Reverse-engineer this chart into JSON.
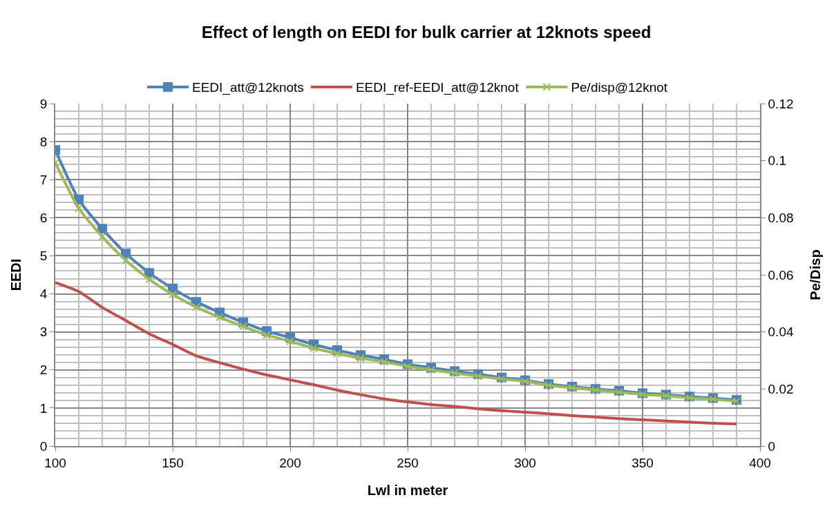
{
  "chart_data": {
    "type": "line",
    "title": "Effect of length on EEDI for bulk carrier at 12knots speed",
    "xlabel": "Lwl in meter",
    "ylabel": "EEDI",
    "y2label": "Pe/Disp",
    "x": [
      100,
      110,
      120,
      130,
      140,
      150,
      160,
      170,
      180,
      190,
      200,
      210,
      220,
      230,
      240,
      250,
      260,
      270,
      280,
      290,
      300,
      310,
      320,
      330,
      340,
      350,
      360,
      370,
      380,
      390
    ],
    "series": [
      {
        "name": "EEDI_att@12knots",
        "color": "#4f81bd",
        "marker": "square",
        "values": [
          7.78,
          6.48,
          5.71,
          5.06,
          4.55,
          4.14,
          3.79,
          3.51,
          3.25,
          3.02,
          2.85,
          2.67,
          2.52,
          2.39,
          2.28,
          2.15,
          2.06,
          1.97,
          1.89,
          1.8,
          1.73,
          1.63,
          1.56,
          1.5,
          1.45,
          1.39,
          1.35,
          1.3,
          1.26,
          1.21
        ]
      },
      {
        "name": "EEDI_ref-EEDI_att@12knot",
        "color": "#c0504d",
        "marker": "none",
        "values": [
          4.3,
          4.06,
          3.64,
          3.3,
          2.95,
          2.67,
          2.37,
          2.19,
          2.02,
          1.87,
          1.74,
          1.61,
          1.47,
          1.35,
          1.24,
          1.16,
          1.09,
          1.04,
          0.98,
          0.93,
          0.89,
          0.85,
          0.8,
          0.76,
          0.72,
          0.69,
          0.66,
          0.63,
          0.6,
          0.58
        ]
      },
      {
        "name": "Pe/disp@12knot",
        "color": "#9bbb59",
        "marker": "cross",
        "axis": "y2",
        "values": [
          0.0993,
          0.0833,
          0.0733,
          0.0651,
          0.0584,
          0.0531,
          0.0487,
          0.0451,
          0.0419,
          0.0389,
          0.0367,
          0.0343,
          0.0324,
          0.0308,
          0.0295,
          0.0279,
          0.0267,
          0.0256,
          0.0245,
          0.0235,
          0.0227,
          0.0213,
          0.0204,
          0.0196,
          0.0189,
          0.0181,
          0.0176,
          0.0169,
          0.0164,
          0.0157
        ]
      }
    ],
    "xlim": [
      100,
      400
    ],
    "xticks": [
      100,
      150,
      200,
      250,
      300,
      350,
      400
    ],
    "ylim": [
      0,
      9
    ],
    "yticks": [
      0,
      1,
      2,
      3,
      4,
      5,
      6,
      7,
      8,
      9
    ],
    "y2lim": [
      0,
      0.12
    ],
    "y2ticks": [
      0,
      0.02,
      0.04,
      0.06,
      0.08,
      {
        "value": 0.1,
        "label": "0.1"
      },
      0.12
    ],
    "grid": true,
    "legend": "top"
  }
}
